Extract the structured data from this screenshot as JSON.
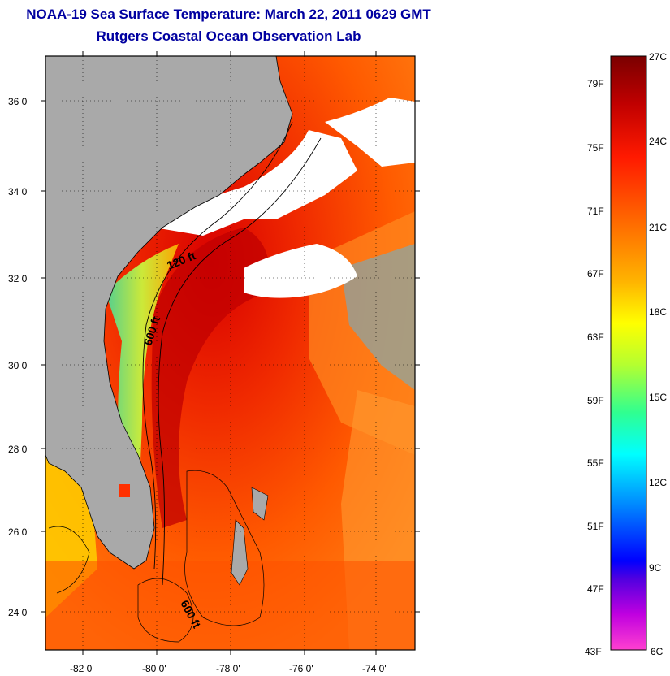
{
  "header": {
    "title": "NOAA-19 Sea Surface Temperature:  March 22, 2011 0629 GMT",
    "subtitle": "Rutgers Coastal Ocean Observation Lab"
  },
  "map": {
    "lat_labels": [
      "36 0'",
      "34 0'",
      "32 0'",
      "30 0'",
      "28 0'",
      "26 0'",
      "24 0'"
    ],
    "lon_labels": [
      "-82 0'",
      "-80 0'",
      "-78 0'",
      "-76 0'",
      "-74 0'"
    ],
    "contour_labels": [
      "120 ft",
      "600 ft",
      "600 ft"
    ]
  },
  "colorbar": {
    "fahrenheit": [
      "79F",
      "75F",
      "71F",
      "67F",
      "63F",
      "59F",
      "55F",
      "51F",
      "47F",
      "43F"
    ],
    "celsius": [
      "27C",
      "24C",
      "21C",
      "18C",
      "15C",
      "12C",
      "9C",
      "6C"
    ]
  },
  "colors": {
    "title": "#0000a0",
    "land": "#a9a9a9",
    "cloud": "#ffffff",
    "warm_core": "#c80000"
  }
}
